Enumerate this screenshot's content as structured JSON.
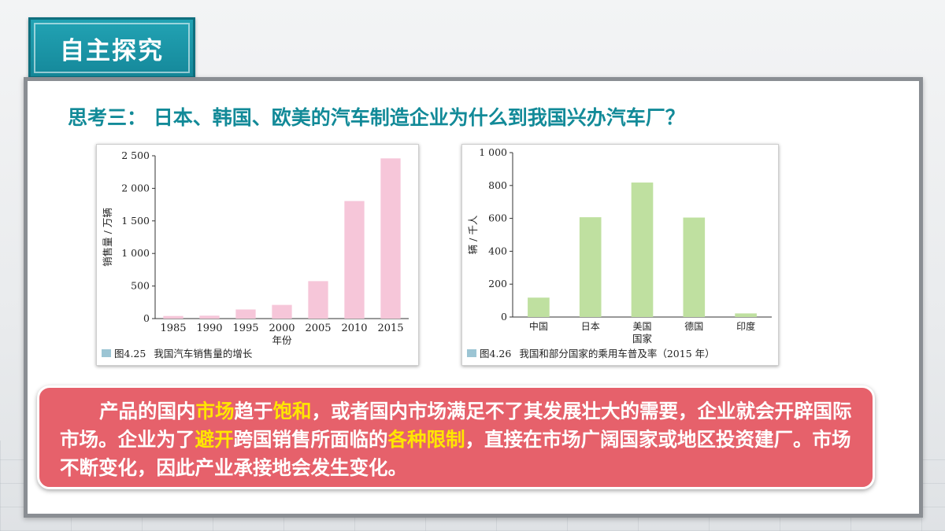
{
  "header": {
    "title": "自主探究"
  },
  "question": {
    "text": "思考三：  日本、韩国、欧美的汽车制造企业为什么到我国兴办汽车厂？"
  },
  "figures": {
    "fig1": {
      "number": "图4.25",
      "caption": "我国汽车销售量的增长"
    },
    "fig2": {
      "number": "图4.26",
      "caption": "我国和部分国家的乘用车普及率（2015 年）"
    }
  },
  "chart_data": [
    {
      "type": "bar",
      "title": "",
      "categories": [
        "1985",
        "1990",
        "1995",
        "2000",
        "2005",
        "2010",
        "2015"
      ],
      "values": [
        40,
        45,
        140,
        210,
        575,
        1805,
        2460
      ],
      "xlabel": "年份",
      "ylabel": "销售量 / 万辆",
      "ylim": [
        0,
        2500
      ],
      "yticks": [
        0,
        500,
        1000,
        1500,
        2000,
        2500
      ],
      "ytick_labels": [
        "0",
        "500",
        "1 000",
        "1 500",
        "2 000",
        "2 500"
      ],
      "bar_color": "#f6c6d9",
      "grid": false
    },
    {
      "type": "bar",
      "title": "",
      "categories": [
        "中国",
        "日本",
        "美国",
        "德国",
        "印度"
      ],
      "values": [
        118,
        607,
        818,
        605,
        22
      ],
      "xlabel": "国家",
      "ylabel": "辆 / 千人",
      "ylim": [
        0,
        1000
      ],
      "yticks": [
        0,
        200,
        400,
        600,
        800,
        1000
      ],
      "ytick_labels": [
        "0",
        "200",
        "400",
        "600",
        "800",
        "1 000"
      ],
      "bar_color": "#bfe0a0",
      "grid": false
    }
  ],
  "summary": {
    "p1": "产品的国内",
    "h1": "市场",
    "p2": "趋于",
    "h2": "饱和",
    "p3": "，或者国内市场满足不了其发展壮大的需要，企业就会开辟国际市场。企业为了",
    "h3": "避开",
    "p4": "跨国销售所面临的",
    "h4": "各种限制",
    "p5": "，直接在市场广阔国家或地区投资建厂。市场不断变化，因此产业承接地会发生变化。"
  },
  "colors": {
    "accent": "#15889a",
    "question": "#128a98",
    "summary_bg": "#e6616b",
    "highlight": "#ffe600"
  }
}
